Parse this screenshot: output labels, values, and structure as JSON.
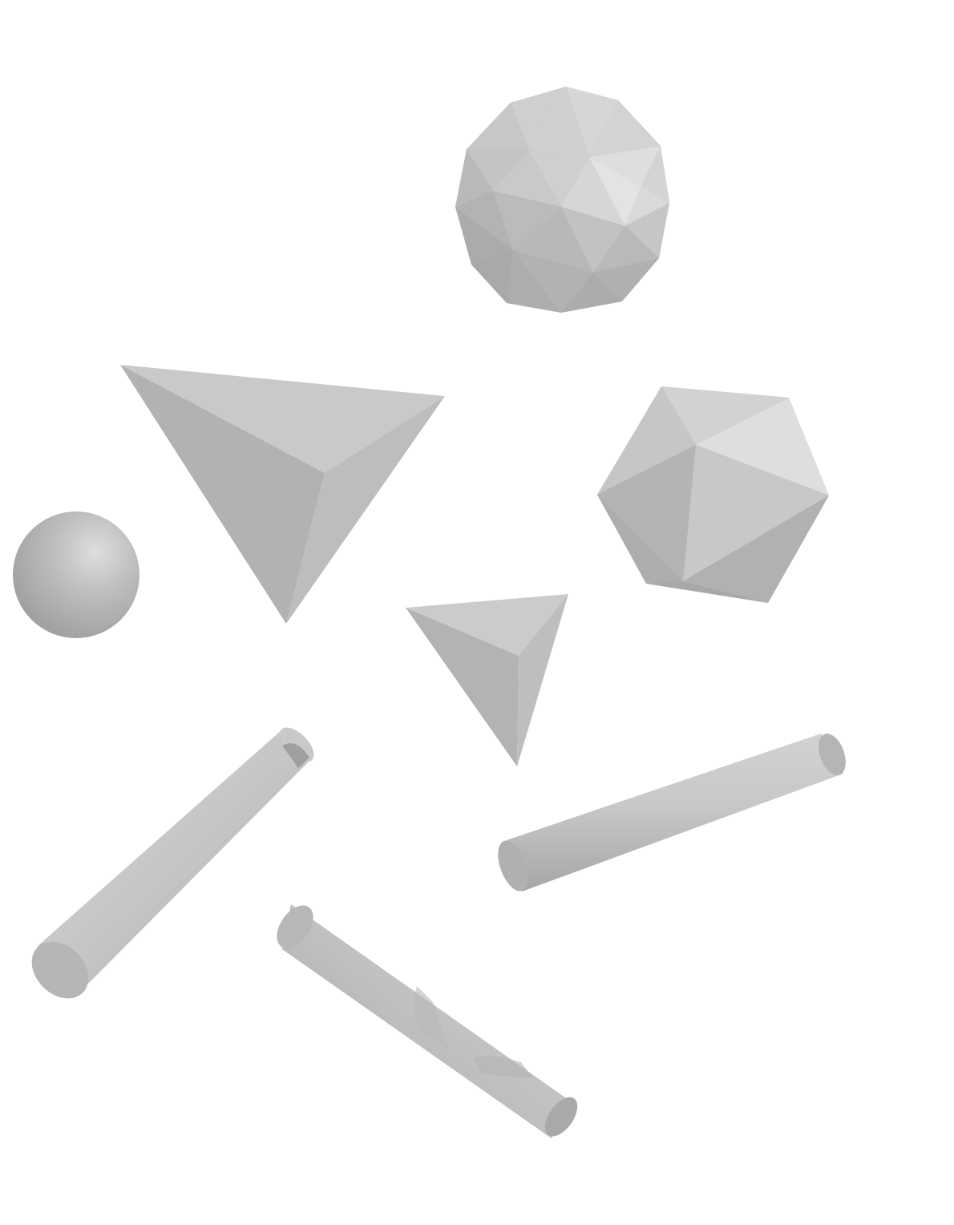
{
  "scene": {
    "background": "#ffffff",
    "colors": {
      "light": "#dcdcdc",
      "mid": "#c4c4c4",
      "dark": "#a9a9a9",
      "shadow": "#999999"
    },
    "objects": [
      {
        "kind": "geodesic-sphere",
        "count": 1
      },
      {
        "kind": "tetrahedron",
        "count": 2
      },
      {
        "kind": "icosahedron",
        "count": 1
      },
      {
        "kind": "sphere",
        "count": 1
      },
      {
        "kind": "cylinder",
        "count": 3
      }
    ]
  }
}
